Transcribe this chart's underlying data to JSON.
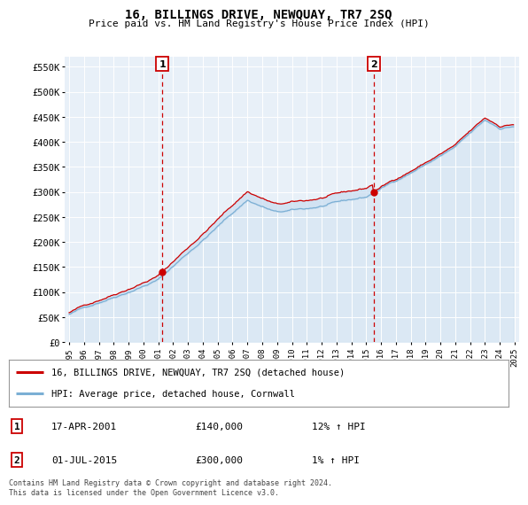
{
  "title": "16, BILLINGS DRIVE, NEWQUAY, TR7 2SQ",
  "subtitle": "Price paid vs. HM Land Registry's House Price Index (HPI)",
  "background_color": "#ffffff",
  "plot_bg_color": "#e8f0f8",
  "grid_color": "#ffffff",
  "marker_color": "#cc0000",
  "line1_color": "#cc0000",
  "line2_color": "#7bafd4",
  "fill_color": "#c8ddf0",
  "legend1_label": "16, BILLINGS DRIVE, NEWQUAY, TR7 2SQ (detached house)",
  "legend2_label": "HPI: Average price, detached house, Cornwall",
  "table_rows": [
    {
      "num": "1",
      "date": "17-APR-2001",
      "price": "£140,000",
      "hpi": "12% ↑ HPI"
    },
    {
      "num": "2",
      "date": "01-JUL-2015",
      "price": "£300,000",
      "hpi": "1% ↑ HPI"
    }
  ],
  "footer": "Contains HM Land Registry data © Crown copyright and database right 2024.\nThis data is licensed under the Open Government Licence v3.0.",
  "purchase1_x": 2001.29,
  "purchase1_y": 140000,
  "purchase2_x": 2015.5,
  "purchase2_y": 300000,
  "xlim_left": 1994.7,
  "xlim_right": 2025.3,
  "ylim_bottom": 0,
  "ylim_top": 570000,
  "yticks": [
    0,
    50000,
    100000,
    150000,
    200000,
    250000,
    300000,
    350000,
    400000,
    450000,
    500000,
    550000
  ],
  "ytick_labels": [
    "£0",
    "£50K",
    "£100K",
    "£150K",
    "£200K",
    "£250K",
    "£300K",
    "£350K",
    "£400K",
    "£450K",
    "£500K",
    "£550K"
  ]
}
